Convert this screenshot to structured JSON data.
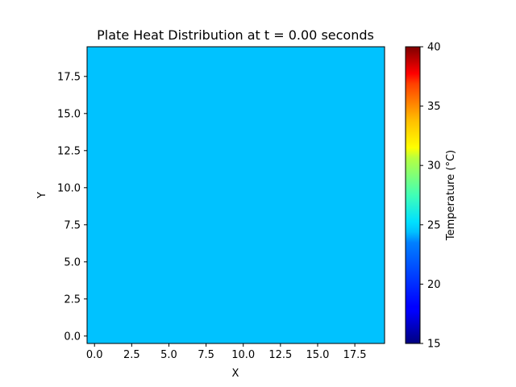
{
  "chart_data": {
    "type": "heatmap",
    "title": "Plate Heat Distribution at t = 0.00 seconds",
    "xlabel": "X",
    "ylabel": "Y",
    "xlim": [
      -0.5,
      19.5
    ],
    "ylim": [
      -0.5,
      19.5
    ],
    "x_ticks": [
      0,
      2.5,
      5,
      7.5,
      10,
      12.5,
      15,
      17.5
    ],
    "x_tick_labels": [
      "0.0",
      "2.5",
      "5.0",
      "7.5",
      "10.0",
      "12.5",
      "15.0",
      "17.5"
    ],
    "y_ticks": [
      0,
      2.5,
      5,
      7.5,
      10,
      12.5,
      15,
      17.5
    ],
    "y_tick_labels": [
      "0.0",
      "2.5",
      "5.0",
      "7.5",
      "10.0",
      "12.5",
      "15.0",
      "17.5"
    ],
    "grid_size": [
      20,
      20
    ],
    "uniform_temperature": 22.5,
    "fill_color": "#00c2ff",
    "colormap": "jet",
    "colorbar": {
      "label": "Temperature (°C)",
      "min": 15,
      "max": 40,
      "ticks": [
        15,
        20,
        25,
        30,
        35,
        40
      ],
      "tick_labels": [
        "15",
        "20",
        "25",
        "30",
        "35",
        "40"
      ]
    },
    "grid": false
  }
}
